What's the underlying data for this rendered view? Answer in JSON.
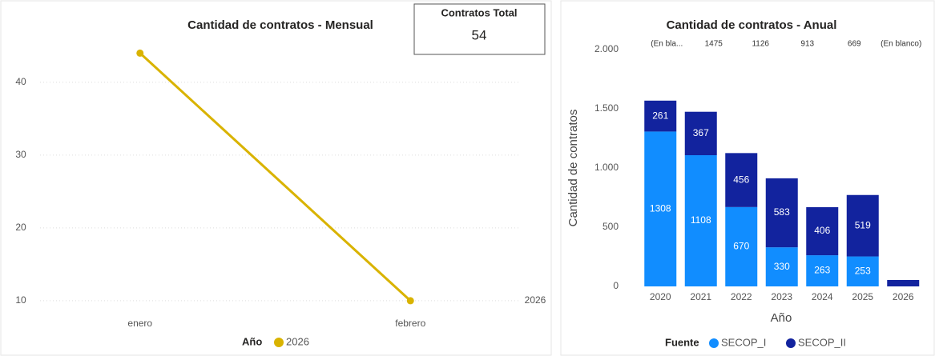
{
  "chart_data": [
    {
      "type": "line",
      "title": "Cantidad de contratos - Mensual",
      "categories": [
        "enero",
        "febrero"
      ],
      "series": [
        {
          "name": "2026",
          "color": "#d9b300",
          "values": [
            44,
            10
          ]
        }
      ],
      "ylim": [
        9,
        48
      ],
      "yticks": [
        10,
        20,
        30,
        40
      ],
      "grid": true,
      "legend_title": "Año",
      "legend": "bottom"
    },
    {
      "type": "bar",
      "stacked": true,
      "title": "Cantidad de contratos - Anual",
      "categories": [
        "2020",
        "2021",
        "2022",
        "2023",
        "2024",
        "2025",
        "2026"
      ],
      "series": [
        {
          "name": "SECOP_I",
          "color": "#118dff",
          "values": [
            1308,
            1108,
            670,
            330,
            263,
            253,
            null
          ]
        },
        {
          "name": "SECOP_II",
          "color": "#12239e",
          "values": [
            261,
            367,
            456,
            583,
            406,
            519,
            54
          ]
        }
      ],
      "total_labels": [
        "(En bla...",
        "1475",
        "1126",
        "913",
        "669",
        "(En blanco)"
      ],
      "ylim": [
        0,
        2000
      ],
      "yticks": [
        0,
        500,
        {
          "value": 1000,
          "label": "1.000"
        },
        {
          "value": 1500,
          "label": "1.500"
        },
        {
          "value": 2000,
          "label": "2.000"
        }
      ],
      "grid": false,
      "xlabel": "Año",
      "ylabel": "Cantidad de contratos",
      "legend_title": "Fuente",
      "legend": "bottom"
    }
  ],
  "card": {
    "title": "Contratos Total",
    "value": 54
  }
}
